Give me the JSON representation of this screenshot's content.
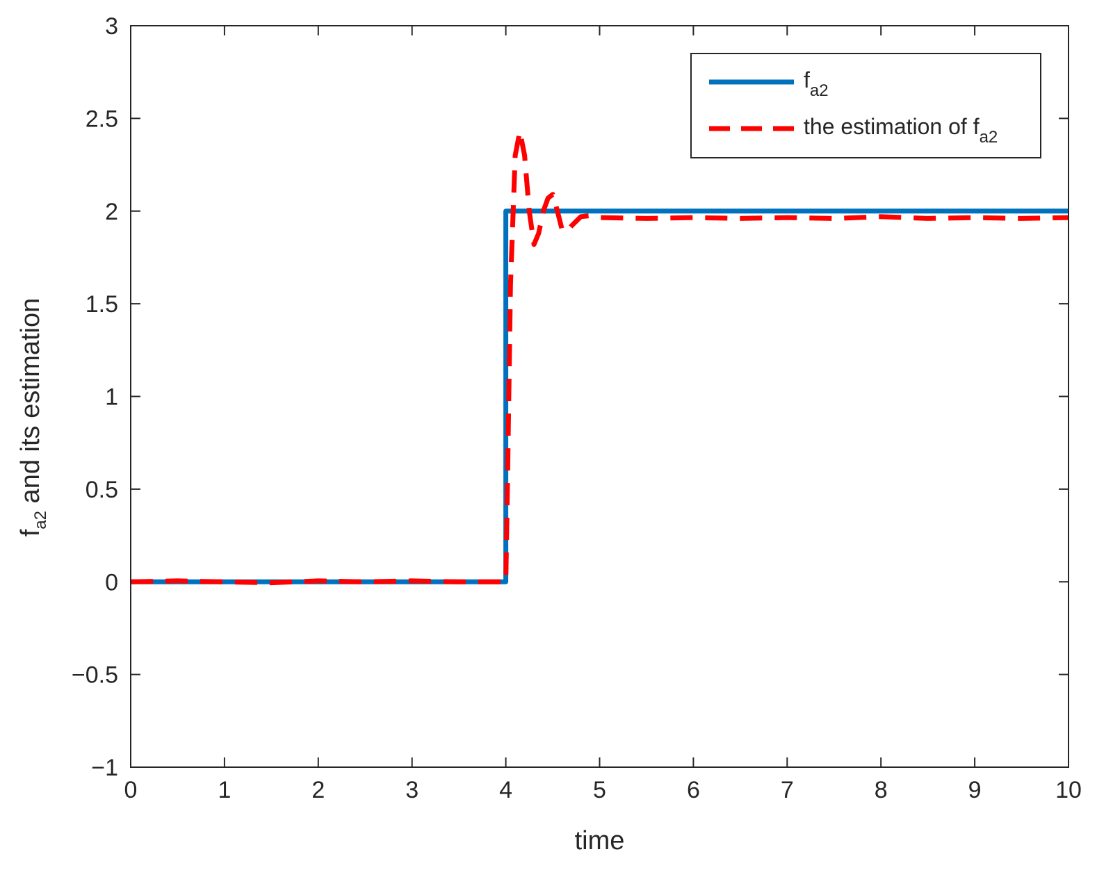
{
  "chart_data": {
    "type": "line",
    "xlabel": "time",
    "ylabel": {
      "pre": "f",
      "sub": "a2",
      "post": " and its estimation"
    },
    "xlim": [
      0,
      10
    ],
    "ylim": [
      -1,
      3
    ],
    "xticks": [
      0,
      1,
      2,
      3,
      4,
      5,
      6,
      7,
      8,
      9,
      10
    ],
    "yticks": [
      -1,
      -0.5,
      0,
      0.5,
      1,
      1.5,
      2,
      2.5,
      3
    ],
    "xtick_labels": [
      "0",
      "1",
      "2",
      "3",
      "4",
      "5",
      "6",
      "7",
      "8",
      "9",
      "10"
    ],
    "ytick_labels": [
      "−1",
      "−0.5",
      "0",
      "0.5",
      "1",
      "1.5",
      "2",
      "2.5",
      "3"
    ],
    "grid": false,
    "legend_position": "top-right",
    "series": [
      {
        "legend": {
          "pre": "f",
          "sub": "a2"
        },
        "color": "#0072BD",
        "style": "solid",
        "x": [
          0,
          4.0,
          4.0,
          10
        ],
        "y": [
          0,
          0,
          2,
          2
        ]
      },
      {
        "legend": {
          "pre": "the estimation of f",
          "sub": "a2"
        },
        "color": "#FF0000",
        "style": "dashed",
        "x": [
          0,
          0.5,
          1.0,
          1.5,
          2.0,
          2.5,
          3.0,
          3.5,
          3.85,
          4.0,
          4.02,
          4.05,
          4.1,
          4.15,
          4.2,
          4.25,
          4.3,
          4.35,
          4.4,
          4.45,
          4.5,
          4.55,
          4.6,
          4.65,
          4.7,
          4.8,
          4.9,
          5.0,
          5.5,
          6.0,
          6.5,
          7.0,
          7.5,
          8.0,
          8.5,
          9.0,
          9.5,
          10.0
        ],
        "y": [
          0,
          0.005,
          0,
          -0.005,
          0.005,
          0,
          0.005,
          0,
          0,
          0,
          0.6,
          1.6,
          2.3,
          2.43,
          2.3,
          2.0,
          1.82,
          1.88,
          2.0,
          2.07,
          2.09,
          2.0,
          1.9,
          1.89,
          1.92,
          1.97,
          1.975,
          1.965,
          1.96,
          1.965,
          1.96,
          1.965,
          1.96,
          1.97,
          1.96,
          1.965,
          1.96,
          1.965
        ]
      }
    ]
  }
}
